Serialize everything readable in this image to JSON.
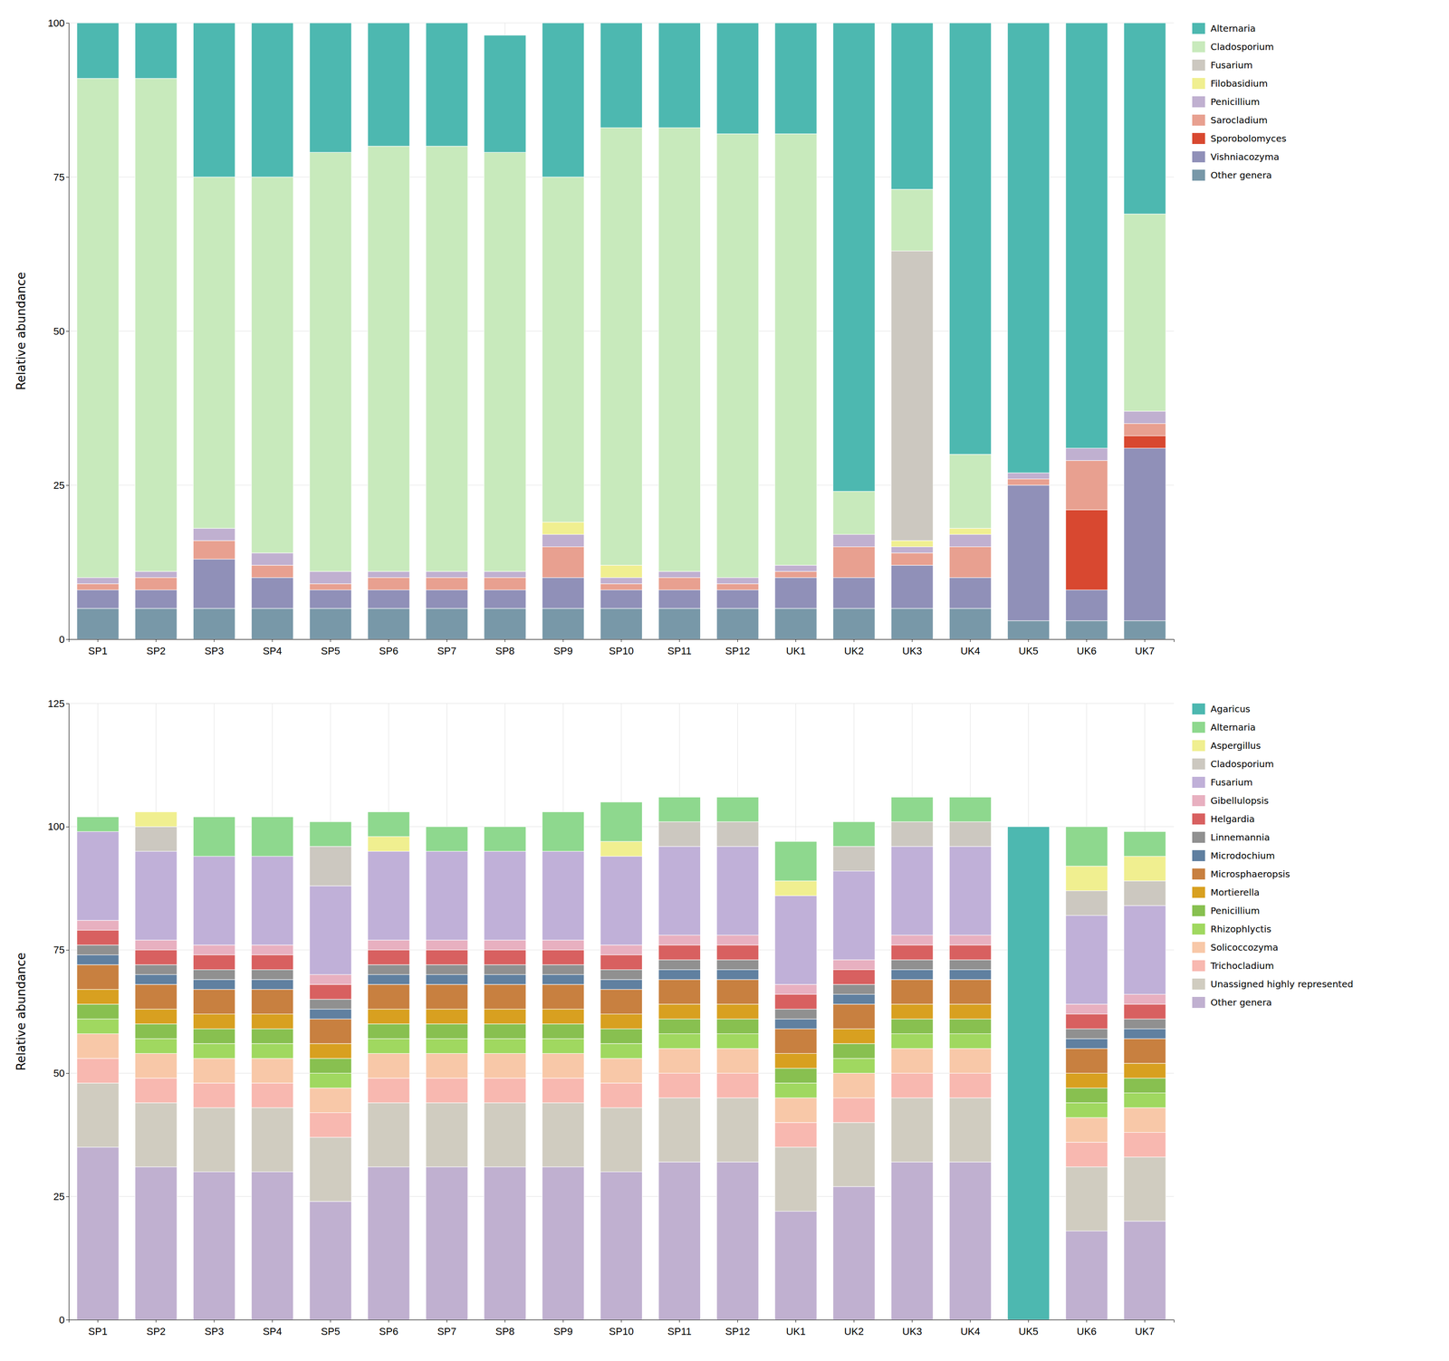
{
  "chart_data": [
    {
      "type": "bar",
      "stacked": true,
      "grid": true,
      "legend": "right",
      "ylabel": "Relative abundance",
      "categories": [
        "SP1",
        "SP2",
        "SP3",
        "SP4",
        "SP5",
        "SP6",
        "SP7",
        "SP8",
        "SP9",
        "SP10",
        "SP11",
        "SP12",
        "UK1",
        "UK2",
        "UK3",
        "UK4",
        "UK5",
        "UK6",
        "UK7"
      ],
      "ylim": [
        0,
        100
      ],
      "yticks": [
        0,
        25,
        50,
        75,
        100
      ],
      "series": [
        {
          "name": "Other genera",
          "color": "#7898a8",
          "values": [
            5,
            5,
            5,
            5,
            5,
            5,
            5,
            5,
            5,
            5,
            5,
            5,
            5,
            5,
            5,
            5,
            3,
            3,
            3
          ]
        },
        {
          "name": "Vishniacozyma",
          "color": "#9090b8",
          "values": [
            3,
            3,
            8,
            5,
            3,
            3,
            3,
            3,
            5,
            3,
            3,
            3,
            5,
            5,
            7,
            5,
            22,
            5,
            28
          ]
        },
        {
          "name": "Sporobolomyces",
          "color": "#d84830",
          "values": [
            0,
            0,
            0,
            0,
            0,
            0,
            0,
            0,
            0,
            0,
            0,
            0,
            0,
            0,
            0,
            0,
            0,
            13,
            2
          ]
        },
        {
          "name": "Sarocladium",
          "color": "#e8a090",
          "values": [
            1,
            2,
            3,
            2,
            1,
            2,
            2,
            2,
            5,
            1,
            2,
            1,
            1,
            5,
            2,
            5,
            1,
            8,
            2
          ]
        },
        {
          "name": "Penicillium",
          "color": "#c0b0d0",
          "values": [
            1,
            1,
            2,
            2,
            2,
            1,
            1,
            1,
            2,
            1,
            1,
            1,
            1,
            2,
            1,
            2,
            1,
            2,
            2
          ]
        },
        {
          "name": "Filobasidium",
          "color": "#f0ef90",
          "values": [
            0,
            0,
            0,
            0,
            0,
            0,
            0,
            0,
            2,
            2,
            0,
            0,
            0,
            0,
            1,
            1,
            0,
            0,
            0
          ]
        },
        {
          "name": "Fusarium",
          "color": "#ccc8c0",
          "values": [
            0,
            0,
            0,
            0,
            0,
            0,
            0,
            0,
            0,
            0,
            0,
            0,
            0,
            0,
            47,
            0,
            0,
            0,
            0
          ]
        },
        {
          "name": "Cladosporium",
          "color": "#c8eabc",
          "values": [
            81,
            80,
            57,
            61,
            68,
            69,
            69,
            68,
            56,
            71,
            72,
            72,
            70,
            7,
            10,
            12,
            0,
            0,
            32
          ]
        },
        {
          "name": "Alternaria",
          "color": "#4db8b0",
          "values": [
            9,
            9,
            25,
            25,
            21,
            20,
            20,
            19,
            25,
            17,
            17,
            18,
            18,
            76,
            27,
            70,
            73,
            69,
            31
          ]
        }
      ]
    },
    {
      "type": "bar",
      "stacked": true,
      "grid": true,
      "legend": "right",
      "ylabel": "Relative abundance",
      "categories": [
        "SP1",
        "SP2",
        "SP3",
        "SP4",
        "SP5",
        "SP6",
        "SP7",
        "SP8",
        "SP9",
        "SP10",
        "SP11",
        "SP12",
        "UK1",
        "UK2",
        "UK3",
        "UK4",
        "UK5",
        "UK6",
        "UK7"
      ],
      "ylim": [
        0,
        125
      ],
      "yticks": [
        0,
        25,
        50,
        75,
        100,
        125
      ],
      "series": [
        {
          "name": "Other genera",
          "color": "#c0b0d0",
          "values": [
            35,
            31,
            30,
            30,
            24,
            31,
            31,
            31,
            31,
            30,
            32,
            32,
            22,
            27,
            32,
            32,
            0,
            18,
            20
          ]
        },
        {
          "name": "Unassigned highly represented",
          "color": "#d0ccc0",
          "values": [
            13,
            13,
            13,
            13,
            13,
            13,
            13,
            13,
            13,
            13,
            13,
            13,
            13,
            13,
            13,
            13,
            0,
            13,
            13
          ]
        },
        {
          "name": "Trichocladium",
          "color": "#f8b8b0",
          "values": [
            5,
            5,
            5,
            5,
            5,
            5,
            5,
            5,
            5,
            5,
            5,
            5,
            5,
            5,
            5,
            5,
            0,
            5,
            5
          ]
        },
        {
          "name": "Solicoccozyma",
          "color": "#f8c8a8",
          "values": [
            5,
            5,
            5,
            5,
            5,
            5,
            5,
            5,
            5,
            5,
            5,
            5,
            5,
            5,
            5,
            5,
            0,
            5,
            5
          ]
        },
        {
          "name": "Rhizophlyctis",
          "color": "#a0d860",
          "values": [
            3,
            3,
            3,
            3,
            3,
            3,
            3,
            3,
            3,
            3,
            3,
            3,
            3,
            3,
            3,
            3,
            0,
            3,
            3
          ]
        },
        {
          "name": "Penicillium",
          "color": "#88c050",
          "values": [
            3,
            3,
            3,
            3,
            3,
            3,
            3,
            3,
            3,
            3,
            3,
            3,
            3,
            3,
            3,
            3,
            0,
            3,
            3
          ]
        },
        {
          "name": "Mortierella",
          "color": "#d8a020",
          "values": [
            3,
            3,
            3,
            3,
            3,
            3,
            3,
            3,
            3,
            3,
            3,
            3,
            3,
            3,
            3,
            3,
            0,
            3,
            3
          ]
        },
        {
          "name": "Microsphaeropsis",
          "color": "#c88040",
          "values": [
            5,
            5,
            5,
            5,
            5,
            5,
            5,
            5,
            5,
            5,
            5,
            5,
            5,
            5,
            5,
            5,
            0,
            5,
            5
          ]
        },
        {
          "name": "Microdochium",
          "color": "#6080a0",
          "values": [
            2,
            2,
            2,
            2,
            2,
            2,
            2,
            2,
            2,
            2,
            2,
            2,
            2,
            2,
            2,
            2,
            0,
            2,
            2
          ]
        },
        {
          "name": "Linnemannia",
          "color": "#909090",
          "values": [
            2,
            2,
            2,
            2,
            2,
            2,
            2,
            2,
            2,
            2,
            2,
            2,
            2,
            2,
            2,
            2,
            0,
            2,
            2
          ]
        },
        {
          "name": "Helgardia",
          "color": "#d86060",
          "values": [
            3,
            3,
            3,
            3,
            3,
            3,
            3,
            3,
            3,
            3,
            3,
            3,
            3,
            3,
            3,
            3,
            0,
            3,
            3
          ]
        },
        {
          "name": "Gibellulopsis",
          "color": "#e8b0c0",
          "values": [
            2,
            2,
            2,
            2,
            2,
            2,
            2,
            2,
            2,
            2,
            2,
            2,
            2,
            2,
            2,
            2,
            0,
            2,
            2
          ]
        },
        {
          "name": "Fusarium",
          "color": "#c0b0d8",
          "values": [
            18,
            18,
            18,
            18,
            18,
            18,
            18,
            18,
            18,
            18,
            18,
            18,
            18,
            18,
            18,
            18,
            0,
            18,
            18
          ]
        },
        {
          "name": "Cladosporium",
          "color": "#ccc8c0",
          "values": [
            0,
            5,
            0,
            0,
            8,
            0,
            0,
            0,
            0,
            0,
            5,
            5,
            0,
            5,
            5,
            5,
            0,
            5,
            5
          ]
        },
        {
          "name": "Aspergillus",
          "color": "#f0ef90",
          "values": [
            0,
            3,
            0,
            0,
            0,
            3,
            0,
            0,
            0,
            3,
            0,
            0,
            3,
            0,
            0,
            0,
            0,
            5,
            5
          ]
        },
        {
          "name": "Alternaria",
          "color": "#8ed88e",
          "values": [
            3,
            0,
            8,
            8,
            5,
            5,
            5,
            5,
            8,
            8,
            5,
            5,
            8,
            5,
            5,
            5,
            0,
            8,
            5
          ]
        },
        {
          "name": "Agaricus",
          "color": "#4db8b0",
          "values": [
            0,
            0,
            0,
            0,
            0,
            0,
            0,
            0,
            0,
            0,
            0,
            0,
            0,
            0,
            0,
            0,
            100,
            0,
            0
          ]
        }
      ]
    }
  ]
}
